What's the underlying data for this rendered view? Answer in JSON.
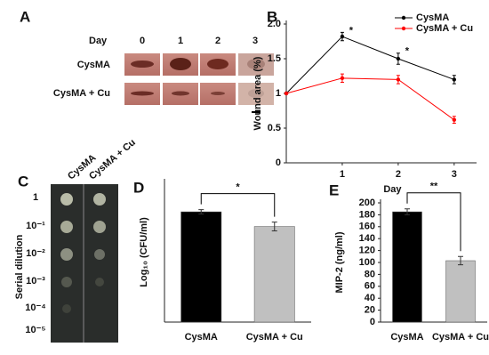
{
  "panel_a": {
    "panel": "A",
    "column_header": "Day",
    "columns": [
      "0",
      "1",
      "2",
      "3"
    ],
    "rows": [
      "CysMA",
      "CysMA + Cu"
    ]
  },
  "panel_c": {
    "panel": "C",
    "columns": [
      "CysMA",
      "CysMA + Cu"
    ],
    "rows": [
      "1",
      "10⁻¹",
      "10⁻²",
      "10⁻³",
      "10⁻⁴",
      "10⁻⁵"
    ],
    "ylabel": "Serial dilution"
  },
  "chart_data": [
    {
      "type": "line",
      "panel": "B",
      "xlabel": "Day",
      "ylabel": "Wound area (%)",
      "x": [
        0,
        1,
        2,
        3
      ],
      "xlim": [
        0,
        3.4
      ],
      "xticks": [
        1,
        2,
        3
      ],
      "ylim": [
        0,
        2
      ],
      "yticks": [
        0,
        0.5,
        1,
        1.5,
        {
          "value": 2,
          "label": "2.0"
        }
      ],
      "legend": "top-right",
      "series": [
        {
          "name": "CysMA",
          "color": "#000000",
          "values": [
            1,
            1.82,
            1.5,
            1.2
          ],
          "errors": [
            0,
            0.06,
            0.08,
            0.06
          ]
        },
        {
          "name": "CysMA + Cu",
          "color": "#ff0000",
          "values": [
            1,
            1.22,
            1.2,
            0.62
          ],
          "errors": [
            0,
            0.06,
            0.06,
            0.05
          ]
        }
      ],
      "annotations": [
        {
          "text": "*",
          "x": 1
        },
        {
          "text": "*",
          "x": 2
        }
      ]
    },
    {
      "type": "bar",
      "panel": "D",
      "ylabel": "Log₁₀ (CFU/ml)",
      "categories": [
        "CysMA",
        "CysMA + Cu"
      ],
      "values": [
        7.5,
        6.5
      ],
      "errors": [
        0.15,
        0.3
      ],
      "colors": [
        "#000000",
        "#c0c0c0"
      ],
      "ylim": [
        0,
        9.5
      ],
      "significance": "*"
    },
    {
      "type": "bar",
      "panel": "E",
      "ylabel": "MIP-2 (ng/ml)",
      "categories": [
        "CysMA",
        "CysMA + Cu"
      ],
      "values": [
        185,
        103
      ],
      "errors": [
        5,
        7
      ],
      "colors": [
        "#000000",
        "#c0c0c0"
      ],
      "ylim": [
        0,
        200
      ],
      "yticks": [
        0,
        20,
        40,
        60,
        80,
        100,
        120,
        140,
        160,
        180,
        200
      ],
      "significance": "**"
    }
  ]
}
